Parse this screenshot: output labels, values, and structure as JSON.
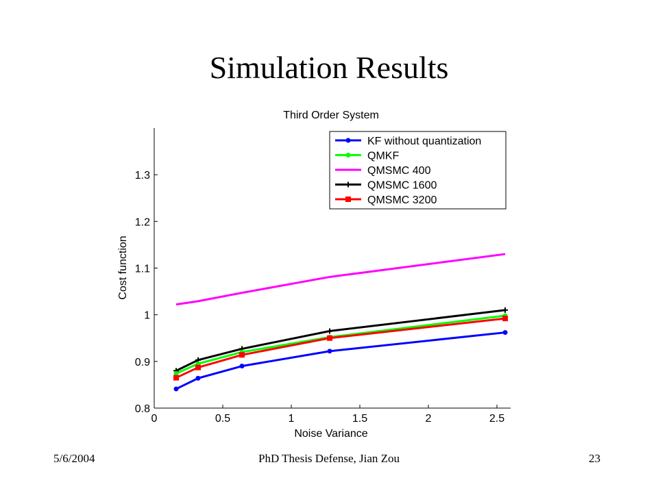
{
  "slide": {
    "title": "Simulation Results",
    "footer_date": "5/6/2004",
    "footer_center": "PhD Thesis Defense, Jian Zou",
    "footer_page": "23"
  },
  "chart_data": {
    "type": "line",
    "title": "Third Order System",
    "xlabel": "Noise Variance",
    "ylabel": "Cost function",
    "xlim": [
      0,
      2.6
    ],
    "ylim": [
      0.8,
      1.4
    ],
    "x_ticks": [
      0,
      0.5,
      1,
      1.5,
      2,
      2.5
    ],
    "x_tick_labels": [
      "0",
      "0.5",
      "1",
      "1.5",
      "2",
      "2.5"
    ],
    "y_ticks": [
      0.8,
      0.9,
      1.0,
      1.1,
      1.2,
      1.3
    ],
    "y_tick_labels": [
      "0.8",
      "0.9",
      "1",
      "1.1",
      "1.2",
      "1.3"
    ],
    "grid": false,
    "legend_position": "top-right",
    "x": [
      0.16,
      0.32,
      0.64,
      1.28,
      2.56
    ],
    "series": [
      {
        "name": "KF without quantization",
        "color": "#0000ff",
        "marker": "dot",
        "values": [
          0.841,
          0.864,
          0.89,
          0.922,
          0.962
        ]
      },
      {
        "name": "QMKF",
        "color": "#00ff00",
        "marker": "dot",
        "values": [
          0.874,
          0.895,
          0.92,
          0.952,
          0.998
        ]
      },
      {
        "name": "QMSMC 400",
        "color": "#ff00ff",
        "marker": "none",
        "values": [
          1.022,
          1.029,
          1.047,
          1.081,
          1.13
        ]
      },
      {
        "name": "QMSMC 1600",
        "color": "#000000",
        "marker": "plus",
        "values": [
          0.88,
          0.903,
          0.927,
          0.965,
          1.01
        ]
      },
      {
        "name": "QMSMC 3200",
        "color": "#ff0000",
        "marker": "square",
        "values": [
          0.865,
          0.887,
          0.914,
          0.95,
          0.992
        ]
      }
    ]
  }
}
